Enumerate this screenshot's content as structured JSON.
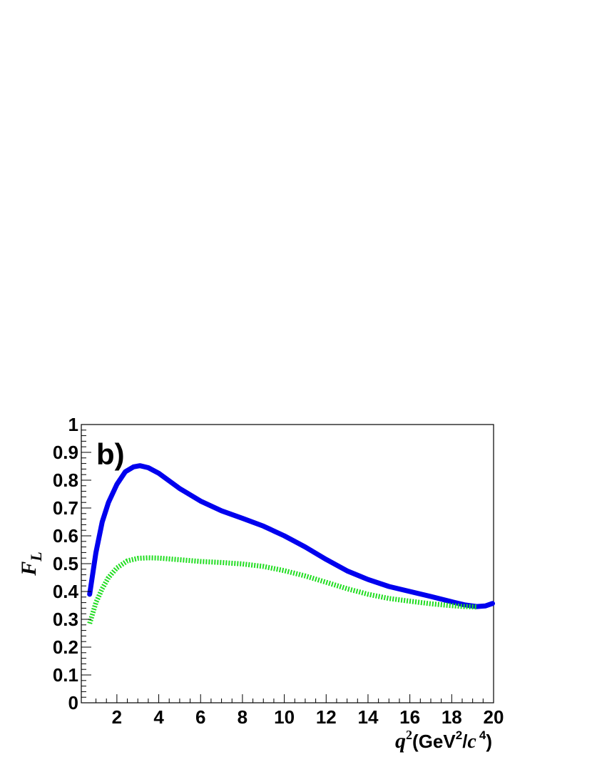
{
  "chart_data": {
    "type": "line",
    "panel_label": "b)",
    "ylabel": {
      "main": "F",
      "sub": "L"
    },
    "xlabel": {
      "var": "q",
      "var_sup": "2",
      "open": "(GeV",
      "unit_sup": "2",
      "slash": "/",
      "c": "c",
      "c_sup": "4",
      "close": ")"
    },
    "xlim": [
      0.3,
      20
    ],
    "ylim": [
      0,
      1
    ],
    "x_ticks": [
      2,
      4,
      6,
      8,
      10,
      12,
      14,
      16,
      18,
      20
    ],
    "x_tick_labels": [
      "2",
      "4",
      "6",
      "8",
      "10",
      "12",
      "14",
      "16",
      "18",
      "20"
    ],
    "y_ticks": [
      0,
      0.1,
      0.2,
      0.3,
      0.4,
      0.5,
      0.6,
      0.7,
      0.8,
      0.9,
      1
    ],
    "y_tick_labels": [
      "0",
      "0.1",
      "0.2",
      "0.3",
      "0.4",
      "0.5",
      "0.6",
      "0.7",
      "0.8",
      "0.9",
      "1"
    ],
    "grid": false,
    "series": [
      {
        "color": "#0000ee",
        "style": "solid",
        "x": [
          0.7,
          1.0,
          1.3,
          1.6,
          2.0,
          2.4,
          2.8,
          3.1,
          3.5,
          4.0,
          5.0,
          6.0,
          7.0,
          8.0,
          9.0,
          10.0,
          11.0,
          12.0,
          13.0,
          14.0,
          15.0,
          16.0,
          17.0,
          18.0,
          18.6,
          19.2,
          19.6,
          19.95
        ],
        "y": [
          0.39,
          0.54,
          0.65,
          0.72,
          0.785,
          0.83,
          0.848,
          0.852,
          0.845,
          0.825,
          0.77,
          0.725,
          0.69,
          0.663,
          0.635,
          0.6,
          0.56,
          0.515,
          0.474,
          0.443,
          0.418,
          0.4,
          0.382,
          0.363,
          0.352,
          0.346,
          0.348,
          0.357
        ]
      },
      {
        "color": "#22dd22",
        "style": "dotted",
        "x": [
          0.7,
          1.0,
          1.3,
          1.6,
          2.0,
          2.5,
          3.0,
          3.5,
          4.0,
          5.0,
          6.0,
          7.0,
          8.0,
          9.0,
          10.0,
          11.0,
          12.0,
          13.0,
          14.0,
          15.0,
          16.0,
          17.0,
          18.0,
          18.6,
          19.2
        ],
        "y": [
          0.285,
          0.36,
          0.41,
          0.45,
          0.485,
          0.51,
          0.519,
          0.521,
          0.52,
          0.514,
          0.508,
          0.504,
          0.499,
          0.49,
          0.475,
          0.456,
          0.433,
          0.41,
          0.39,
          0.375,
          0.365,
          0.356,
          0.349,
          0.346,
          0.344
        ]
      }
    ],
    "colors": {
      "axis": "#000000",
      "background": "#ffffff"
    }
  }
}
